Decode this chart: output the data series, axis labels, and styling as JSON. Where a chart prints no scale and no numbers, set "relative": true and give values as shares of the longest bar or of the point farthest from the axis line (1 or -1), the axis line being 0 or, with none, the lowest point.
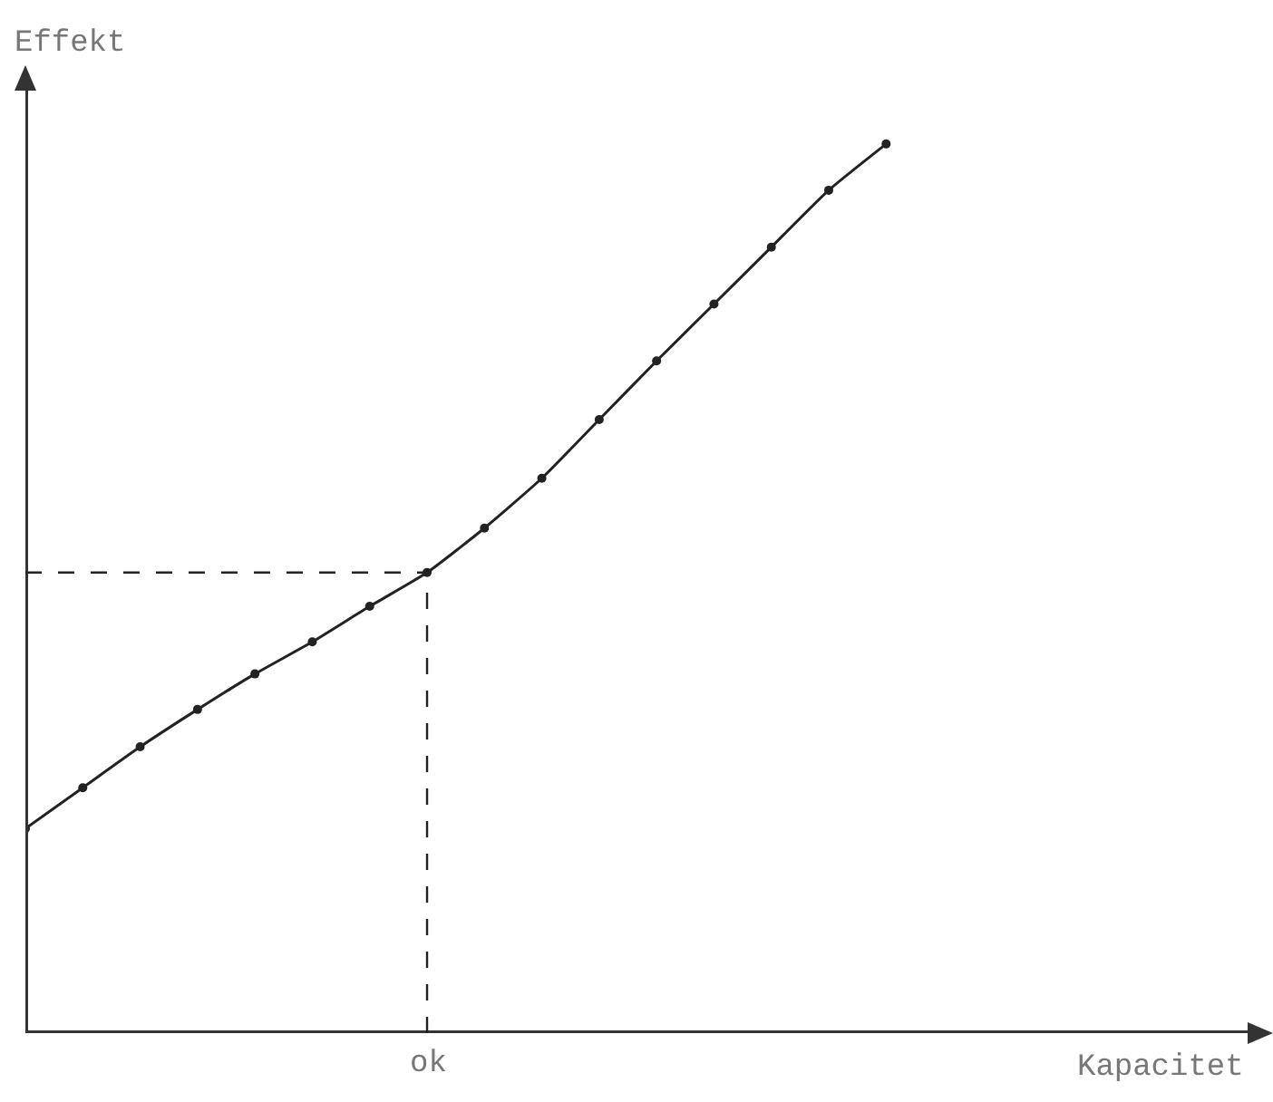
{
  "chart_data": {
    "type": "line",
    "relative": true,
    "ylabel": "Effekt",
    "categories": [
      null,
      null,
      null,
      null,
      null,
      null,
      null,
      null,
      null,
      null,
      null,
      null,
      null,
      null,
      null,
      null
    ],
    "series": [
      {
        "color": "#222222",
        "values": [
          0.23,
          0.276,
          0.322,
          0.364,
          0.404,
          0.44,
          0.48,
          0.518,
          0.568,
          0.624,
          0.69,
          0.756,
          0.82,
          0.884,
          0.948,
          1
        ]
      }
    ],
    "annotations": [
      "ok",
      "Kapacitet"
    ],
    "ref_lines": [
      {
        "axis": "y",
        "value": 0.518,
        "label": null,
        "line_style": "dashed",
        "color": "#222222"
      }
    ],
    "marker": "circle",
    "line_style": "solid",
    "grid": false
  }
}
